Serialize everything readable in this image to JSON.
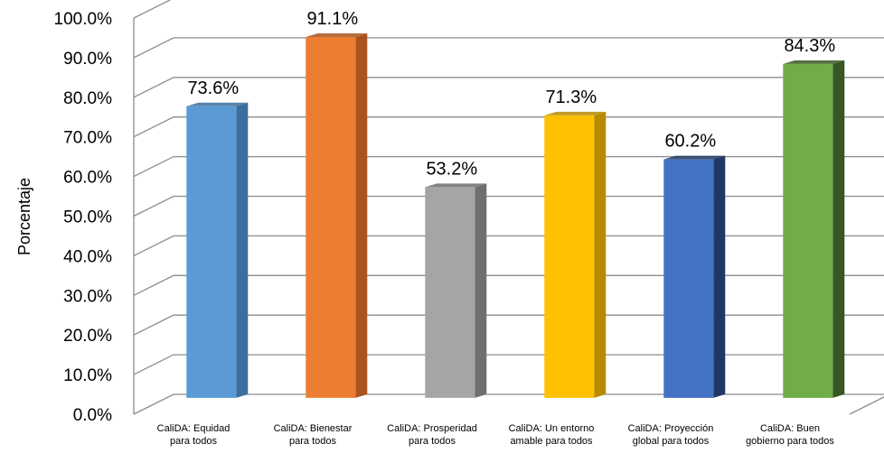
{
  "chart_data": {
    "type": "bar",
    "ylabel": "Porcentaje",
    "ylim": [
      0,
      100
    ],
    "y_ticks": [
      "0.0%",
      "10.0%",
      "20.0%",
      "30.0%",
      "40.0%",
      "50.0%",
      "60.0%",
      "70.0%",
      "80.0%",
      "90.0%",
      "100.0%"
    ],
    "grid": true,
    "style_3d": true,
    "categories": [
      [
        "CaliDA: Equidad",
        "para todos"
      ],
      [
        "CaliDA: Bienestar",
        "para todos"
      ],
      [
        "CaliDA: Prosperidad",
        "para todos"
      ],
      [
        "CaliDA: Un entorno",
        "amable para todos"
      ],
      [
        "CaliDA: Proyección",
        "global para todos"
      ],
      [
        "CaliDA: Buen",
        "gobierno para todos"
      ]
    ],
    "values": [
      73.6,
      91.1,
      53.2,
      71.3,
      60.2,
      84.3
    ],
    "data_labels": [
      "73.6%",
      "91.1%",
      "53.2%",
      "71.3%",
      "60.2%",
      "84.3%"
    ],
    "colors": [
      {
        "front": "#5b9bd5",
        "side": "#3b6e9e"
      },
      {
        "front": "#ed7d31",
        "side": "#a9541d"
      },
      {
        "front": "#a5a5a5",
        "side": "#6f6f6f"
      },
      {
        "front": "#ffc000",
        "side": "#b98a00"
      },
      {
        "front": "#4472c4",
        "side": "#1f3864"
      },
      {
        "front": "#70ad47",
        "side": "#375623"
      }
    ]
  }
}
